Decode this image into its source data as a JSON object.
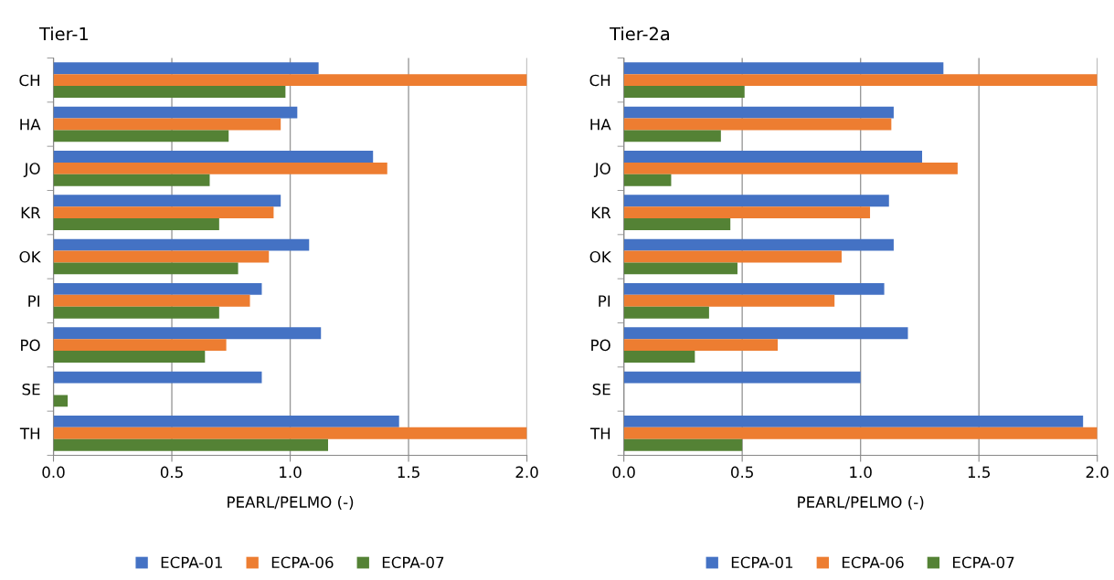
{
  "chart_data": [
    {
      "type": "bar",
      "orientation": "horizontal",
      "title": "Tier-1",
      "xlabel": "PEARL/PELMO (-)",
      "categories": [
        "CH",
        "HA",
        "JO",
        "KR",
        "OK",
        "PI",
        "PO",
        "SE",
        "TH"
      ],
      "xlim": [
        0,
        2.0
      ],
      "xticks": [
        {
          "value": 0,
          "label": "0.0"
        },
        {
          "value": 0.5,
          "label": "0.5"
        },
        {
          "value": 1,
          "label": "1.0"
        },
        {
          "value": 1.5,
          "label": "1.5"
        },
        {
          "value": 2,
          "label": "2.0"
        }
      ],
      "grid": "x",
      "legend": "bottom",
      "series": [
        {
          "name": "ECPA-01",
          "color": "#4472c4",
          "values": [
            1.12,
            1.03,
            1.35,
            0.96,
            1.08,
            0.88,
            1.13,
            0.88,
            1.46
          ]
        },
        {
          "name": "ECPA-06",
          "color": "#ed7d31",
          "values": [
            2.0,
            0.96,
            1.41,
            0.93,
            0.91,
            0.83,
            0.73,
            null,
            2.0
          ]
        },
        {
          "name": "ECPA-07",
          "color": "#548235",
          "values": [
            0.98,
            0.74,
            0.66,
            0.7,
            0.78,
            0.7,
            0.64,
            0.06,
            1.16
          ]
        }
      ]
    },
    {
      "type": "bar",
      "orientation": "horizontal",
      "title": "Tier-2a",
      "xlabel": "PEARL/PELMO (-)",
      "categories": [
        "CH",
        "HA",
        "JO",
        "KR",
        "OK",
        "PI",
        "PO",
        "SE",
        "TH"
      ],
      "xlim": [
        0,
        2.0
      ],
      "xticks": [
        {
          "value": 0,
          "label": "0.0"
        },
        {
          "value": 0.5,
          "label": "0.5"
        },
        {
          "value": 1,
          "label": "1.0"
        },
        {
          "value": 1.5,
          "label": "1.5"
        },
        {
          "value": 2,
          "label": "2.0"
        }
      ],
      "grid": "x",
      "legend": "bottom",
      "series": [
        {
          "name": "ECPA-01",
          "color": "#4472c4",
          "values": [
            1.35,
            1.14,
            1.26,
            1.12,
            1.14,
            1.1,
            1.2,
            1.0,
            1.94
          ]
        },
        {
          "name": "ECPA-06",
          "color": "#ed7d31",
          "values": [
            2.0,
            1.13,
            1.41,
            1.04,
            0.92,
            0.89,
            0.65,
            null,
            2.0
          ]
        },
        {
          "name": "ECPA-07",
          "color": "#548235",
          "values": [
            0.51,
            0.41,
            0.2,
            0.45,
            0.48,
            0.36,
            0.3,
            null,
            0.5
          ]
        }
      ]
    }
  ]
}
